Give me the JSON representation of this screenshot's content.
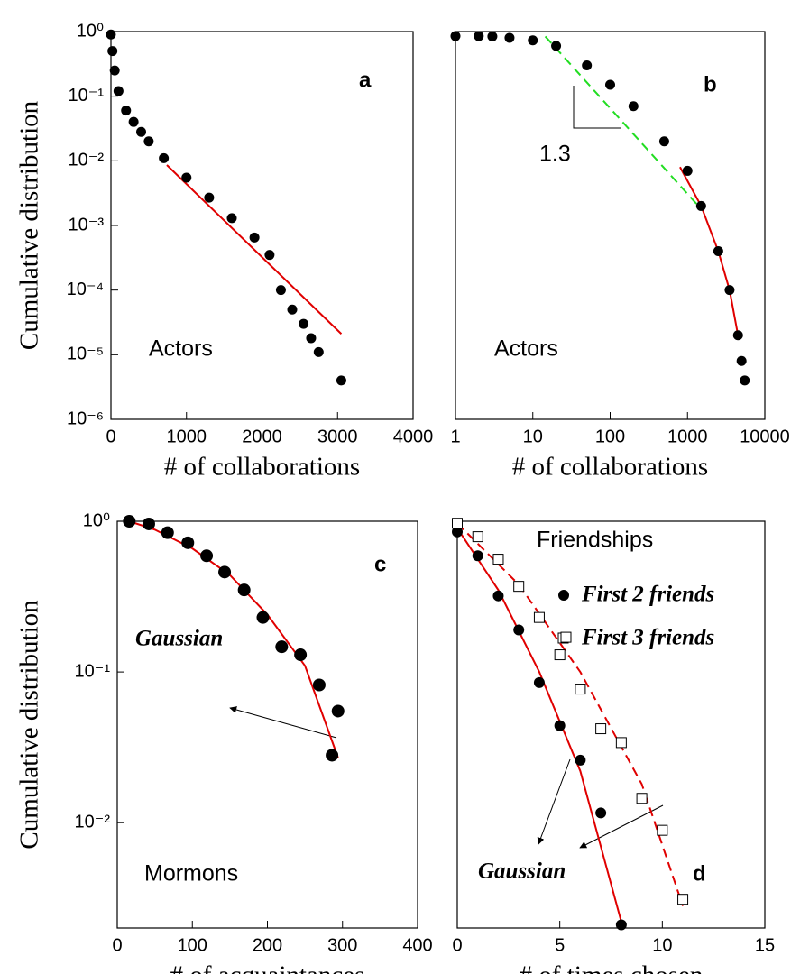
{
  "chart_data": [
    {
      "type": "scatter",
      "label": "a",
      "annotation": "Actors",
      "xlabel": "# of collaborations",
      "ylabel": "Cumulative distribution",
      "xlim": [
        0,
        4000
      ],
      "ylim": [
        1e-06,
        1
      ],
      "ylog": true,
      "xticks": [
        0,
        1000,
        2000,
        3000,
        4000
      ],
      "yticks": [
        {
          "value": 1,
          "label": "10⁰"
        },
        {
          "value": 0.1,
          "label": "10⁻¹"
        },
        {
          "value": 0.01,
          "label": "10⁻²"
        },
        {
          "value": 0.001,
          "label": "10⁻³"
        },
        {
          "value": 0.0001,
          "label": "10⁻⁴"
        },
        {
          "value": 1e-05,
          "label": "10⁻⁵"
        },
        {
          "value": 1e-06,
          "label": "10⁻⁶"
        }
      ],
      "series": [
        {
          "marker": "circle",
          "color": "#000000",
          "x": [
            0,
            20,
            50,
            100,
            200,
            300,
            400,
            500,
            700,
            1000,
            1300,
            1600,
            1900,
            2100,
            2250,
            2400,
            2550,
            2650,
            2750,
            3050
          ],
          "values": [
            0.9,
            0.5,
            0.25,
            0.12,
            0.06,
            0.04,
            0.028,
            0.02,
            0.011,
            0.0055,
            0.0027,
            0.0013,
            0.00065,
            0.00035,
            0.0001,
            5e-05,
            3e-05,
            1.8e-05,
            1.1e-05,
            4e-06
          ]
        },
        {
          "line": "solid",
          "color": "#e00000",
          "x": [
            740,
            3050
          ],
          "values": [
            0.0086,
            2.1e-05
          ]
        }
      ]
    },
    {
      "type": "scatter",
      "label": "b",
      "annotation": "Actors",
      "slope_label": "1.3",
      "xlabel": "# of collaborations",
      "xlim": [
        1,
        10000
      ],
      "ylim": [
        1e-06,
        1
      ],
      "xlog": true,
      "ylog": true,
      "xticks": [
        1,
        10,
        100,
        1000,
        10000
      ],
      "series": [
        {
          "marker": "circle",
          "color": "#000000",
          "x": [
            1,
            2,
            3,
            5,
            10,
            20,
            50,
            100,
            200,
            500,
            1000,
            1500,
            2500,
            3500,
            4500,
            5000,
            5500
          ],
          "values": [
            0.85,
            0.85,
            0.84,
            0.8,
            0.73,
            0.6,
            0.3,
            0.15,
            0.07,
            0.02,
            0.007,
            0.002,
            0.0004,
            0.0001,
            2e-05,
            8e-06,
            4e-06
          ]
        },
        {
          "line": "solid",
          "color": "#e00000",
          "x": [
            800,
            1500,
            2500,
            3500,
            4500
          ],
          "values": [
            0.008,
            0.002,
            0.0004,
            0.0001,
            2e-05
          ]
        },
        {
          "line": "dashed",
          "color": "#22dd22",
          "x": [
            14.5,
            1500
          ],
          "values": [
            0.84,
            0.0018
          ]
        }
      ]
    },
    {
      "type": "scatter",
      "label": "c",
      "annotation": "Mormons",
      "fit_label": "Gaussian",
      "xlabel": "# of acquaintances",
      "ylabel": "Cumulative distribution",
      "xlim": [
        0,
        400
      ],
      "ylim": [
        0.002,
        1
      ],
      "ylog": true,
      "xticks": [
        0,
        100,
        200,
        300,
        400
      ],
      "yticks": [
        {
          "value": 1,
          "label": "10⁰"
        },
        {
          "value": 0.1,
          "label": "10⁻¹"
        },
        {
          "value": 0.01,
          "label": "10⁻²"
        }
      ],
      "series": [
        {
          "marker": "circle",
          "size": 7,
          "color": "#000000",
          "x": [
            16,
            42,
            67,
            94,
            119,
            143,
            169,
            194,
            219,
            244,
            269,
            294,
            286
          ],
          "values": [
            1.0,
            0.96,
            0.84,
            0.72,
            0.59,
            0.46,
            0.35,
            0.23,
            0.147,
            0.13,
            0.082,
            0.055,
            0.028
          ]
        },
        {
          "line": "solid",
          "color": "#e00000",
          "x": [
            16,
            50,
            100,
            150,
            200,
            250,
            294
          ],
          "values": [
            1.0,
            0.88,
            0.66,
            0.44,
            0.24,
            0.11,
            0.027
          ]
        }
      ]
    },
    {
      "type": "scatter",
      "label": "d",
      "annotation": "Friendships",
      "fit_label": "Gaussian",
      "xlabel": "# of times chosen",
      "xlim": [
        0,
        15
      ],
      "ylim": [
        0.002,
        1
      ],
      "ylog": true,
      "xticks": [
        0,
        5,
        10,
        15
      ],
      "series": [
        {
          "name": "First 2 friends",
          "marker": "circle",
          "size": 6,
          "color": "#000000",
          "x": [
            0,
            1,
            2,
            3,
            4,
            5,
            6,
            7,
            8
          ],
          "values": [
            0.85,
            0.59,
            0.32,
            0.19,
            0.085,
            0.044,
            0.026,
            0.0116,
            0.0021
          ]
        },
        {
          "name": "First 3 friends",
          "marker": "square",
          "color": "#000000",
          "x": [
            0,
            1,
            2,
            3,
            4,
            5.3,
            5,
            6,
            7,
            8,
            9,
            10,
            11
          ],
          "values": [
            0.97,
            0.79,
            0.56,
            0.37,
            0.23,
            0.17,
            0.13,
            0.077,
            0.042,
            0.034,
            0.0145,
            0.0089,
            0.0031
          ]
        },
        {
          "line": "solid",
          "color": "#e00000",
          "x": [
            0,
            2,
            4,
            6,
            8
          ],
          "values": [
            0.9,
            0.35,
            0.1,
            0.022,
            0.0022
          ]
        },
        {
          "line": "dashed",
          "color": "#e00000",
          "x": [
            0,
            3,
            6,
            9,
            11
          ],
          "values": [
            0.97,
            0.38,
            0.1,
            0.018,
            0.0028
          ]
        }
      ]
    }
  ]
}
